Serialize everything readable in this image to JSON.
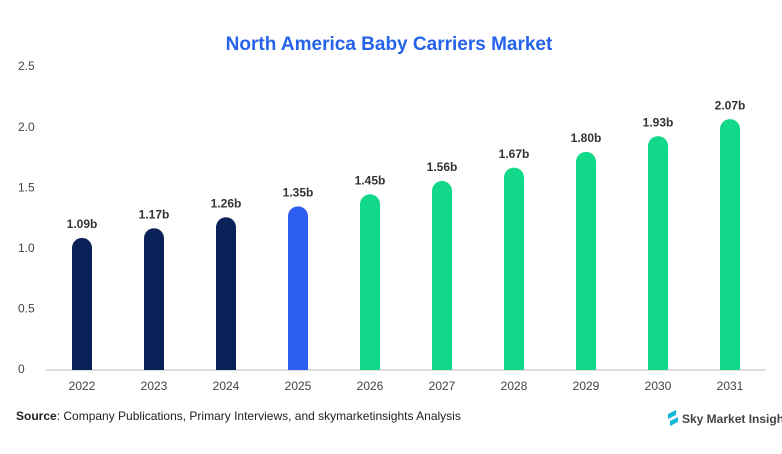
{
  "chart_data": {
    "type": "bar",
    "title": "North America Baby Carriers Market",
    "categories": [
      "2022",
      "2023",
      "2024",
      "2025",
      "2026",
      "2027",
      "2028",
      "2029",
      "2030",
      "2031"
    ],
    "values": [
      1.09,
      1.17,
      1.26,
      1.35,
      1.45,
      1.56,
      1.67,
      1.8,
      1.93,
      2.07
    ],
    "value_labels": [
      "1.09b",
      "1.17b",
      "1.26b",
      "1.35b",
      "1.45b",
      "1.56b",
      "1.67b",
      "1.80b",
      "1.93b",
      "2.07b"
    ],
    "colors": [
      "#0b2259",
      "#0b2259",
      "#0b2259",
      "#2c5cf0",
      "#12d88a",
      "#12d88a",
      "#12d88a",
      "#12d88a",
      "#12d88a",
      "#12d88a"
    ],
    "ylim": [
      0,
      2.5
    ],
    "yticks": [
      0,
      0.5,
      {
        "value": 1,
        "label": "1.0"
      },
      1.5,
      {
        "value": 2,
        "label": "2.0"
      },
      2.5
    ],
    "grid": false,
    "source_label": "Source",
    "source_text": ": Company Publications, Primary Interviews, and skymarketinsights Analysis",
    "brand": "Sky Market Insights"
  }
}
